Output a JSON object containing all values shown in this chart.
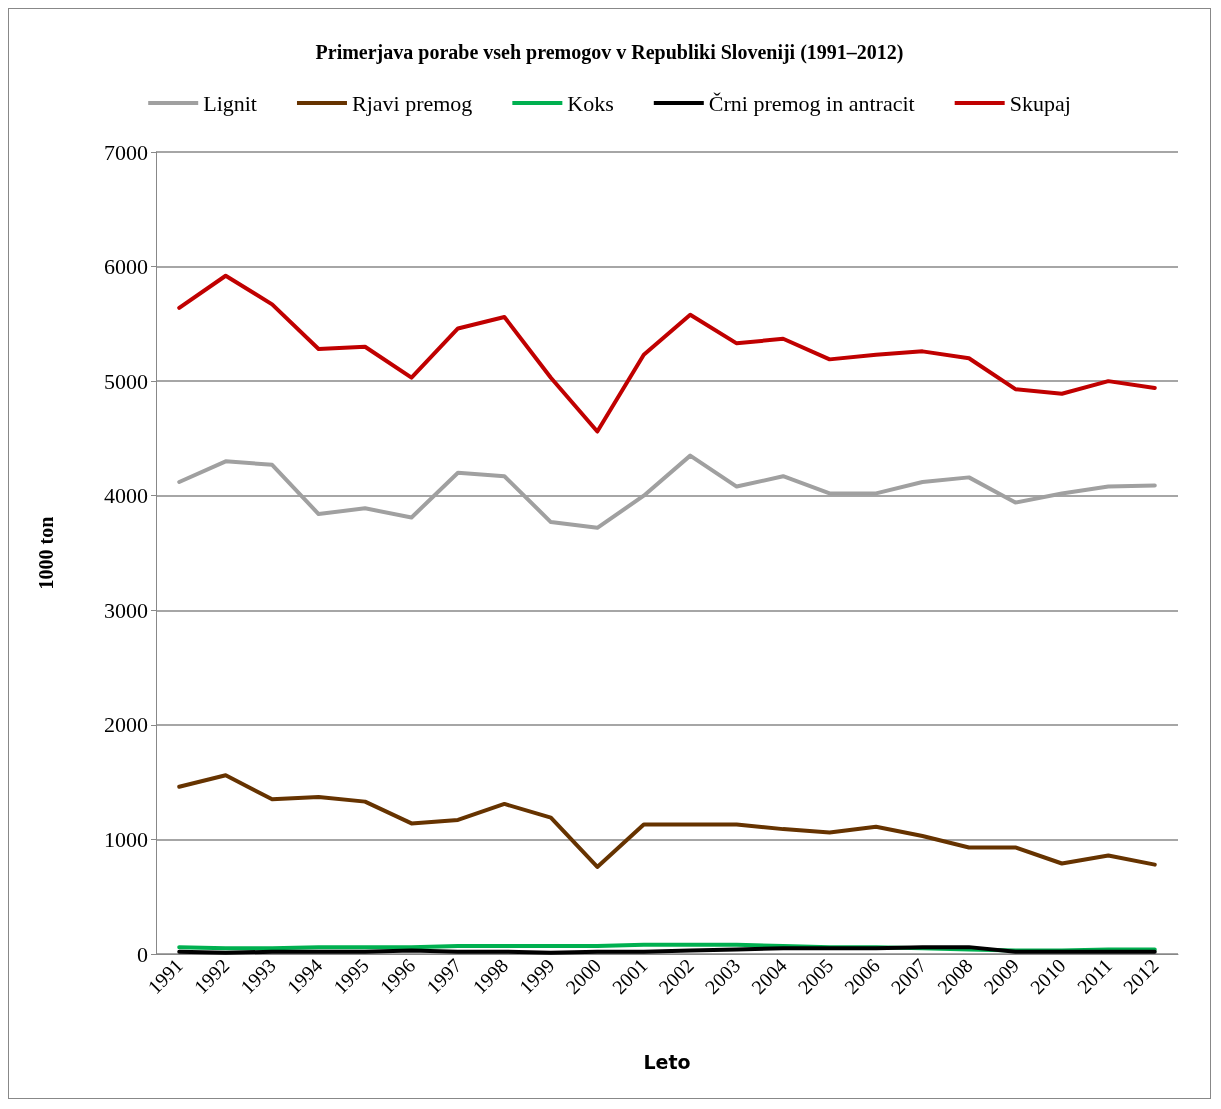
{
  "chart_data": {
    "type": "line",
    "title": "Primerjava porabe vseh premogov v Republiki Sloveniji (1991–2012)",
    "xlabel": "Leto",
    "ylabel": "1000 ton",
    "categories": [
      "1991",
      "1992",
      "1993",
      "1994",
      "1995",
      "1996",
      "1997",
      "1998",
      "1999",
      "2000",
      "2001",
      "2002",
      "2003",
      "2004",
      "2005",
      "2006",
      "2007",
      "2008",
      "2009",
      "2010",
      "2011",
      "2012"
    ],
    "series": [
      {
        "name": "Lignit",
        "color": "#a0a0a0",
        "values": [
          4120,
          4300,
          4270,
          3840,
          3890,
          3810,
          4200,
          4170,
          3770,
          3720,
          4000,
          4350,
          4080,
          4170,
          4020,
          4020,
          4120,
          4160,
          3940,
          4020,
          4080,
          4090
        ]
      },
      {
        "name": "Rjavi premog",
        "color": "#663300",
        "values": [
          1460,
          1560,
          1350,
          1370,
          1330,
          1140,
          1170,
          1310,
          1190,
          760,
          1130,
          1130,
          1130,
          1090,
          1060,
          1110,
          1030,
          930,
          930,
          790,
          860,
          780
        ]
      },
      {
        "name": "Koks",
        "color": "#00b050",
        "values": [
          60,
          50,
          50,
          60,
          60,
          60,
          70,
          70,
          70,
          70,
          80,
          80,
          80,
          70,
          60,
          60,
          50,
          40,
          30,
          30,
          40,
          40
        ]
      },
      {
        "name": "Črni premog in antracit",
        "color": "#000000",
        "values": [
          20,
          10,
          20,
          20,
          20,
          30,
          20,
          20,
          10,
          20,
          20,
          30,
          40,
          50,
          50,
          50,
          60,
          60,
          20,
          20,
          20,
          20
        ]
      },
      {
        "name": "Skupaj",
        "color": "#c00000",
        "values": [
          5640,
          5920,
          5670,
          5280,
          5300,
          5030,
          5460,
          5560,
          5030,
          4560,
          5230,
          5580,
          5330,
          5370,
          5190,
          5230,
          5260,
          5200,
          4930,
          4890,
          5000,
          4940
        ]
      }
    ],
    "ylim": [
      0,
      7000
    ],
    "yticks": [
      0,
      1000,
      2000,
      3000,
      4000,
      5000,
      6000,
      7000
    ],
    "grid": "y",
    "legend": "top",
    "marker": "none",
    "line_style": "solid"
  }
}
